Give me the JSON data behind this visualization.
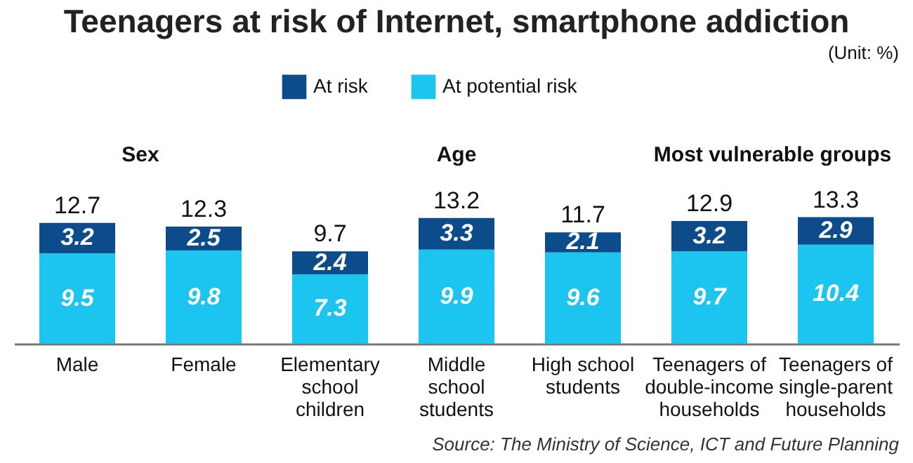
{
  "chart_data": {
    "type": "bar",
    "title": "Teenagers at risk of Internet, smartphone addiction",
    "stacked": true,
    "data_labels": true,
    "legend": "top",
    "categories": [
      "Male",
      "Female",
      "Elementary school children",
      "Middle school students",
      "High school students",
      "Teenagers of double-income households",
      "Teenagers of single-parent households"
    ],
    "series": [
      {
        "name": "At potential risk",
        "color": "#1cc4f0",
        "values": [
          9.5,
          9.8,
          7.3,
          9.9,
          9.6,
          9.7,
          10.4
        ]
      },
      {
        "name": "At risk",
        "color": "#0d4c8a",
        "values": [
          3.2,
          2.5,
          2.4,
          3.3,
          2.1,
          3.2,
          2.9
        ]
      }
    ],
    "totals": [
      "12.7",
      "12.3",
      "9.7",
      "13.2",
      "11.7",
      "12.9",
      "13.3"
    ],
    "annotations": [
      "(Unit: %)",
      "Sex",
      "Age",
      "Most vulnerable groups",
      "Source: The Ministry of Science, ICT and Future Planning"
    ]
  }
}
